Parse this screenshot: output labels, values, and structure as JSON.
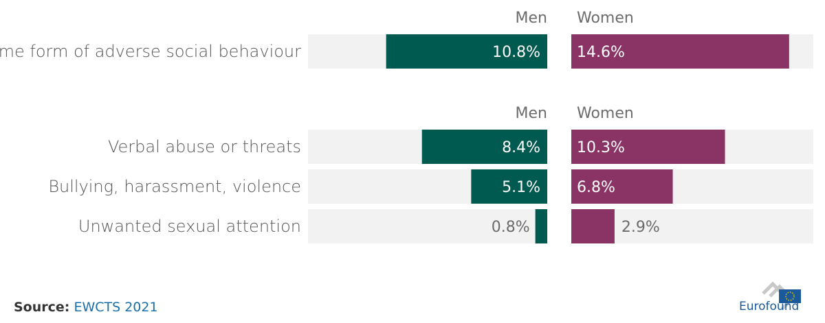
{
  "chart_data": {
    "type": "bar",
    "orientation": "horizontal-diverging",
    "series": [
      {
        "name": "Men",
        "color": "#005a4f"
      },
      {
        "name": "Women",
        "color": "#8a3466"
      }
    ],
    "groups": [
      {
        "headers": [
          "Men",
          "Women"
        ],
        "rows": [
          {
            "label": "Some form of adverse social behaviour",
            "men": 10.8,
            "women": 14.6,
            "men_label": "10.8%",
            "women_label": "14.6%"
          }
        ]
      },
      {
        "headers": [
          "Men",
          "Women"
        ],
        "rows": [
          {
            "label": "Verbal abuse or threats",
            "men": 8.4,
            "women": 10.3,
            "men_label": "8.4%",
            "women_label": "10.3%"
          },
          {
            "label": "Bullying, harassment, violence",
            "men": 5.1,
            "women": 6.8,
            "men_label": "5.1%",
            "women_label": "6.8%"
          },
          {
            "label": "Unwanted sexual attention",
            "men": 0.8,
            "women": 2.9,
            "men_label": "0.8%",
            "women_label": "2.9%"
          }
        ]
      }
    ],
    "value_unit": "%"
  },
  "source": {
    "prefix": "Source:",
    "name": "EWCTS 2021"
  },
  "brand": {
    "name": "Eurofound"
  }
}
